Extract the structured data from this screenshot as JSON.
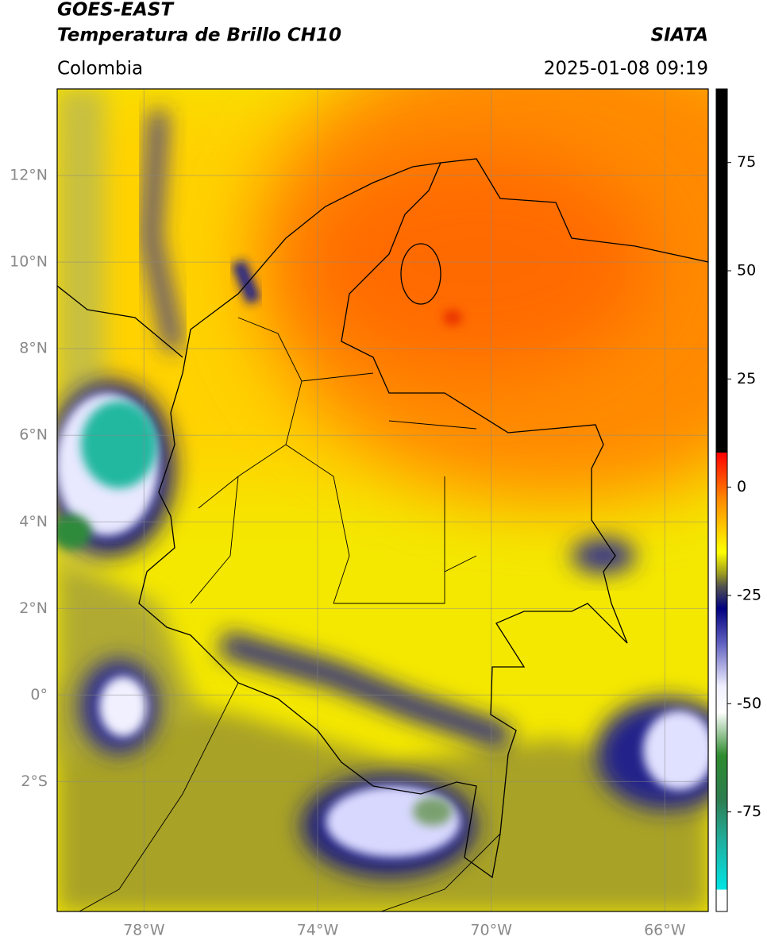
{
  "header": {
    "title": "GOES-EAST",
    "subtitle": "Temperatura de Brillo CH10",
    "source": "SIATA",
    "region": "Colombia",
    "datetime": "2025-01-08 09:19"
  },
  "map": {
    "xlim": [
      -80,
      -65
    ],
    "ylim": [
      -5,
      14
    ],
    "grid": true,
    "xticks": [
      {
        "value": -78,
        "label": "78°W"
      },
      {
        "value": -74,
        "label": "74°W"
      },
      {
        "value": -70,
        "label": "70°W"
      },
      {
        "value": -66,
        "label": "66°W"
      }
    ],
    "yticks": [
      {
        "value": 12,
        "label": "12°N"
      },
      {
        "value": 10,
        "label": "10°N"
      },
      {
        "value": 8,
        "label": "8°N"
      },
      {
        "value": 6,
        "label": "6°N"
      },
      {
        "value": 4,
        "label": "4°N"
      },
      {
        "value": 2,
        "label": "2°N"
      },
      {
        "value": 0,
        "label": "0°"
      },
      {
        "value": -2,
        "label": "2°S"
      }
    ]
  },
  "colorbar": {
    "lim": [
      -98,
      92
    ],
    "ticks": [
      75,
      50,
      25,
      0,
      -25,
      -50,
      -75
    ],
    "colormap": [
      {
        "value": 92,
        "color": "#000000"
      },
      {
        "value": 8,
        "color": "#000000"
      },
      {
        "value": 8,
        "color": "#ff0000"
      },
      {
        "value": -3,
        "color": "#ff8c00"
      },
      {
        "value": -15,
        "color": "#ffff00"
      },
      {
        "value": -20,
        "color": "#9a9a20"
      },
      {
        "value": -23,
        "color": "#505050"
      },
      {
        "value": -28,
        "color": "#000080"
      },
      {
        "value": -36,
        "color": "#6060c0"
      },
      {
        "value": -46,
        "color": "#f0f0ff"
      },
      {
        "value": -52,
        "color": "#ffffff"
      },
      {
        "value": -62,
        "color": "#2e8b2e"
      },
      {
        "value": -72,
        "color": "#2e7d4f"
      },
      {
        "value": -82,
        "color": "#20b0a0"
      },
      {
        "value": -93,
        "color": "#00e5e5"
      },
      {
        "value": -93,
        "color": "#ffffff"
      },
      {
        "value": -98,
        "color": "#ffffff"
      }
    ]
  }
}
